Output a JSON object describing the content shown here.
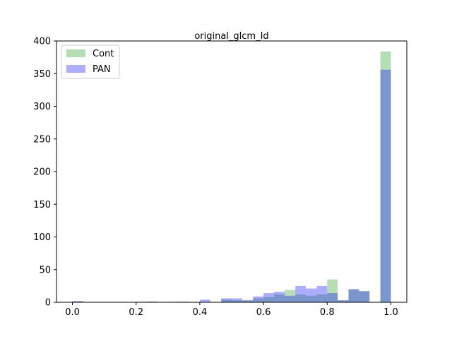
{
  "chart_data": {
    "type": "bar",
    "title": "original_glcm_Id",
    "xlabel": "",
    "ylabel": "",
    "xlim": [
      -0.05,
      1.05
    ],
    "ylim": [
      0,
      400
    ],
    "xticks": [
      "0.0",
      "0.2",
      "0.4",
      "0.6",
      "0.8",
      "1.0"
    ],
    "yticks": [
      "0",
      "50",
      "100",
      "150",
      "200",
      "250",
      "300",
      "350",
      "400"
    ],
    "legend_position": "top-left",
    "grid": false,
    "series": [
      {
        "name": "Cont",
        "color": "#2ca02c",
        "alpha": 0.35,
        "bins": [
          {
            "x0": 0.0,
            "x1": 0.033,
            "count": 1
          },
          {
            "x0": 0.2,
            "x1": 0.233,
            "count": 1
          },
          {
            "x0": 0.233,
            "x1": 0.267,
            "count": 1
          },
          {
            "x0": 0.3,
            "x1": 0.333,
            "count": 1
          },
          {
            "x0": 0.467,
            "x1": 0.5,
            "count": 4
          },
          {
            "x0": 0.5,
            "x1": 0.533,
            "count": 3
          },
          {
            "x0": 0.533,
            "x1": 0.567,
            "count": 3
          },
          {
            "x0": 0.567,
            "x1": 0.6,
            "count": 6
          },
          {
            "x0": 0.6,
            "x1": 0.633,
            "count": 8
          },
          {
            "x0": 0.633,
            "x1": 0.667,
            "count": 12
          },
          {
            "x0": 0.667,
            "x1": 0.7,
            "count": 19
          },
          {
            "x0": 0.7,
            "x1": 0.733,
            "count": 12
          },
          {
            "x0": 0.733,
            "x1": 0.767,
            "count": 10
          },
          {
            "x0": 0.767,
            "x1": 0.8,
            "count": 12
          },
          {
            "x0": 0.8,
            "x1": 0.833,
            "count": 35
          },
          {
            "x0": 0.833,
            "x1": 0.867,
            "count": 3
          },
          {
            "x0": 0.867,
            "x1": 0.9,
            "count": 20
          },
          {
            "x0": 0.9,
            "x1": 0.933,
            "count": 17
          },
          {
            "x0": 0.967,
            "x1": 1.0,
            "count": 384
          }
        ]
      },
      {
        "name": "PAN",
        "color": "#0000ff",
        "alpha": 0.32,
        "bins": [
          {
            "x0": 0.0,
            "x1": 0.033,
            "count": 2
          },
          {
            "x0": 0.233,
            "x1": 0.267,
            "count": 1
          },
          {
            "x0": 0.333,
            "x1": 0.367,
            "count": 1
          },
          {
            "x0": 0.4,
            "x1": 0.433,
            "count": 4
          },
          {
            "x0": 0.467,
            "x1": 0.5,
            "count": 6
          },
          {
            "x0": 0.5,
            "x1": 0.533,
            "count": 6
          },
          {
            "x0": 0.533,
            "x1": 0.567,
            "count": 3
          },
          {
            "x0": 0.567,
            "x1": 0.6,
            "count": 9
          },
          {
            "x0": 0.6,
            "x1": 0.633,
            "count": 14
          },
          {
            "x0": 0.633,
            "x1": 0.667,
            "count": 16
          },
          {
            "x0": 0.667,
            "x1": 0.7,
            "count": 10
          },
          {
            "x0": 0.7,
            "x1": 0.733,
            "count": 25
          },
          {
            "x0": 0.733,
            "x1": 0.767,
            "count": 21
          },
          {
            "x0": 0.767,
            "x1": 0.8,
            "count": 25
          },
          {
            "x0": 0.8,
            "x1": 0.833,
            "count": 14
          },
          {
            "x0": 0.833,
            "x1": 0.867,
            "count": 3
          },
          {
            "x0": 0.867,
            "x1": 0.9,
            "count": 20
          },
          {
            "x0": 0.9,
            "x1": 0.933,
            "count": 17
          },
          {
            "x0": 0.967,
            "x1": 1.0,
            "count": 356
          }
        ]
      }
    ]
  }
}
